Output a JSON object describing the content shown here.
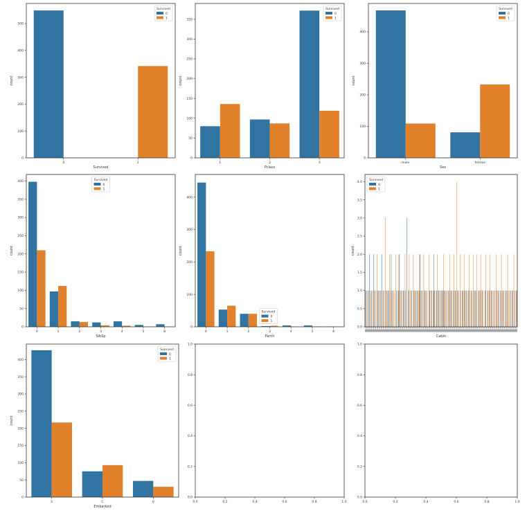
{
  "colors": {
    "c0": "#3274a1",
    "c1": "#e1812c",
    "axis": "#333333",
    "text": "#333333"
  },
  "chart_data": [
    {
      "type": "bar",
      "xlabel": "Survived",
      "ylabel": "count",
      "categories": [
        "0",
        "1"
      ],
      "ylim": [
        0,
        575
      ],
      "yticks": [
        0,
        100,
        200,
        300,
        400,
        500
      ],
      "series": [
        {
          "name": "0",
          "values": [
            549,
            0
          ]
        },
        {
          "name": "1",
          "values": [
            0,
            342
          ]
        }
      ],
      "legend": {
        "title": "Survived",
        "labels": [
          "0",
          "1"
        ],
        "loc": "top-right"
      }
    },
    {
      "type": "bar",
      "xlabel": "Pclass",
      "ylabel": "count",
      "categories": [
        "1",
        "2",
        "3"
      ],
      "ylim": [
        0,
        390
      ],
      "yticks": [
        0,
        50,
        100,
        150,
        200,
        250,
        300,
        350
      ],
      "series": [
        {
          "name": "0",
          "values": [
            80,
            97,
            372
          ]
        },
        {
          "name": "1",
          "values": [
            136,
            87,
            119
          ]
        }
      ],
      "legend": {
        "title": "Survived",
        "labels": [
          "0",
          "1"
        ],
        "loc": "top-right"
      }
    },
    {
      "type": "bar",
      "xlabel": "Sex",
      "ylabel": "count",
      "categories": [
        "male",
        "female"
      ],
      "ylim": [
        0,
        490
      ],
      "yticks": [
        0,
        100,
        200,
        300,
        400
      ],
      "series": [
        {
          "name": "0",
          "values": [
            468,
            81
          ]
        },
        {
          "name": "1",
          "values": [
            109,
            233
          ]
        }
      ],
      "legend": {
        "title": "Survived",
        "labels": [
          "0",
          "1"
        ],
        "loc": "top-right"
      }
    },
    {
      "type": "bar",
      "xlabel": "SibSp",
      "ylabel": "count",
      "categories": [
        "0",
        "1",
        "2",
        "3",
        "4",
        "5",
        "8"
      ],
      "ylim": [
        0,
        418
      ],
      "yticks": [
        0,
        50,
        100,
        150,
        200,
        250,
        300,
        350,
        400
      ],
      "series": [
        {
          "name": "0",
          "values": [
            398,
            97,
            15,
            12,
            15,
            5,
            7
          ]
        },
        {
          "name": "1",
          "values": [
            210,
            112,
            13,
            4,
            3,
            0,
            0
          ]
        }
      ],
      "legend": {
        "title": "Survived",
        "labels": [
          "0",
          "1"
        ],
        "loc": "top-center"
      }
    },
    {
      "type": "bar",
      "xlabel": "Parch",
      "ylabel": "count",
      "categories": [
        "0",
        "1",
        "2",
        "3",
        "4",
        "5",
        "6"
      ],
      "ylim": [
        0,
        470
      ],
      "yticks": [
        0,
        100,
        200,
        300,
        400
      ],
      "series": [
        {
          "name": "0",
          "values": [
            445,
            53,
            40,
            2,
            4,
            4,
            1
          ]
        },
        {
          "name": "1",
          "values": [
            233,
            65,
            40,
            3,
            0,
            1,
            0
          ]
        }
      ],
      "legend": {
        "title": "Survived",
        "labels": [
          "0",
          "1"
        ],
        "loc": "center"
      }
    },
    {
      "type": "bar",
      "xlabel": "Cabin",
      "ylabel": "count",
      "ylim": [
        0,
        4.2
      ],
      "yticks": [
        0.0,
        0.5,
        1.0,
        1.5,
        2.0,
        2.5,
        3.0,
        3.5,
        4.0
      ],
      "yticklabels": [
        "0.0",
        "0.5",
        "1.0",
        "1.5",
        "2.0",
        "2.5",
        "3.0",
        "3.5",
        "4.0"
      ],
      "category_count": 147,
      "note": "147 cabin categories with overlapping tick labels; per-category counts for survived=0 and survived=1 are mostly 0 or 1, a few reach 2, 3 and 4",
      "series": [
        {
          "name": "0",
          "values": [
            0,
            1,
            0,
            1,
            2,
            0,
            1,
            0,
            2,
            1,
            0,
            0,
            1,
            1,
            0,
            1,
            2,
            0,
            1,
            0,
            1,
            0,
            1,
            1,
            0,
            2,
            0,
            1,
            0,
            0,
            1,
            0,
            1,
            2,
            0,
            1,
            0,
            1,
            0,
            1,
            3,
            0,
            1,
            0,
            0,
            1,
            0,
            1,
            0,
            1,
            1,
            0,
            1,
            2,
            0,
            1,
            0,
            1,
            0,
            1,
            0,
            0,
            1,
            0,
            1,
            0,
            2,
            1,
            0,
            1,
            0,
            1,
            0,
            1,
            0,
            1,
            1,
            0,
            1,
            0,
            0,
            1,
            0,
            1,
            0,
            1,
            0,
            1,
            0,
            1,
            0,
            0,
            1,
            0,
            1,
            0,
            1,
            0,
            1,
            0,
            1,
            0,
            0,
            1,
            0,
            1,
            0,
            1,
            0,
            1,
            0,
            1,
            0,
            1,
            0,
            0,
            1,
            0,
            1,
            0,
            1,
            0,
            1,
            0,
            1,
            0,
            0,
            1,
            0,
            1,
            0,
            1,
            0,
            1,
            0,
            1,
            0,
            1,
            0,
            0,
            1,
            0,
            1,
            0,
            1,
            0,
            1
          ]
        },
        {
          "name": "1",
          "values": [
            1,
            0,
            1,
            0,
            1,
            1,
            0,
            1,
            0,
            1,
            1,
            2,
            0,
            1,
            1,
            0,
            1,
            1,
            0,
            3,
            1,
            1,
            0,
            2,
            1,
            1,
            1,
            0,
            1,
            2,
            0,
            1,
            2,
            1,
            1,
            0,
            1,
            1,
            2,
            0,
            0,
            1,
            2,
            1,
            1,
            0,
            2,
            1,
            1,
            0,
            1,
            1,
            2,
            1,
            1,
            0,
            2,
            1,
            1,
            0,
            1,
            2,
            1,
            1,
            0,
            1,
            1,
            0,
            1,
            2,
            1,
            1,
            0,
            1,
            1,
            2,
            1,
            1,
            0,
            1,
            1,
            2,
            1,
            1,
            0,
            2,
            1,
            1,
            4,
            1,
            1,
            2,
            0,
            1,
            1,
            2,
            1,
            1,
            0,
            1,
            2,
            1,
            1,
            0,
            2,
            1,
            1,
            2,
            0,
            1,
            1,
            2,
            1,
            1,
            0,
            1,
            2,
            0,
            1,
            1,
            2,
            1,
            1,
            0,
            1,
            1,
            2,
            1,
            1,
            0,
            1,
            2,
            1,
            1,
            0,
            1,
            1,
            2,
            1,
            1,
            0,
            1,
            1,
            2,
            0,
            1,
            1
          ]
        }
      ],
      "legend": {
        "title": "Survived",
        "labels": [
          "0",
          "1"
        ],
        "loc": "top-left"
      }
    },
    {
      "type": "bar",
      "xlabel": "Embarked",
      "ylabel": "count",
      "categories": [
        "S",
        "C",
        "Q"
      ],
      "ylim": [
        0,
        445
      ],
      "yticks": [
        0,
        50,
        100,
        150,
        200,
        250,
        300,
        350,
        400
      ],
      "series": [
        {
          "name": "0",
          "values": [
            427,
            75,
            47
          ]
        },
        {
          "name": "1",
          "values": [
            217,
            93,
            30
          ]
        }
      ],
      "legend": {
        "title": "Survived",
        "labels": [
          "0",
          "1"
        ],
        "loc": "top-right"
      }
    },
    {
      "type": "empty",
      "xlim": [
        0.0,
        1.0
      ],
      "ylim": [
        0.0,
        1.0
      ],
      "ticklabels": [
        "0.0",
        "0.2",
        "0.4",
        "0.6",
        "0.8",
        "1.0"
      ]
    },
    {
      "type": "empty",
      "xlim": [
        0.0,
        1.0
      ],
      "ylim": [
        0.0,
        1.0
      ],
      "ticklabels": [
        "0.0",
        "0.2",
        "0.4",
        "0.6",
        "0.8",
        "1.0"
      ]
    }
  ]
}
